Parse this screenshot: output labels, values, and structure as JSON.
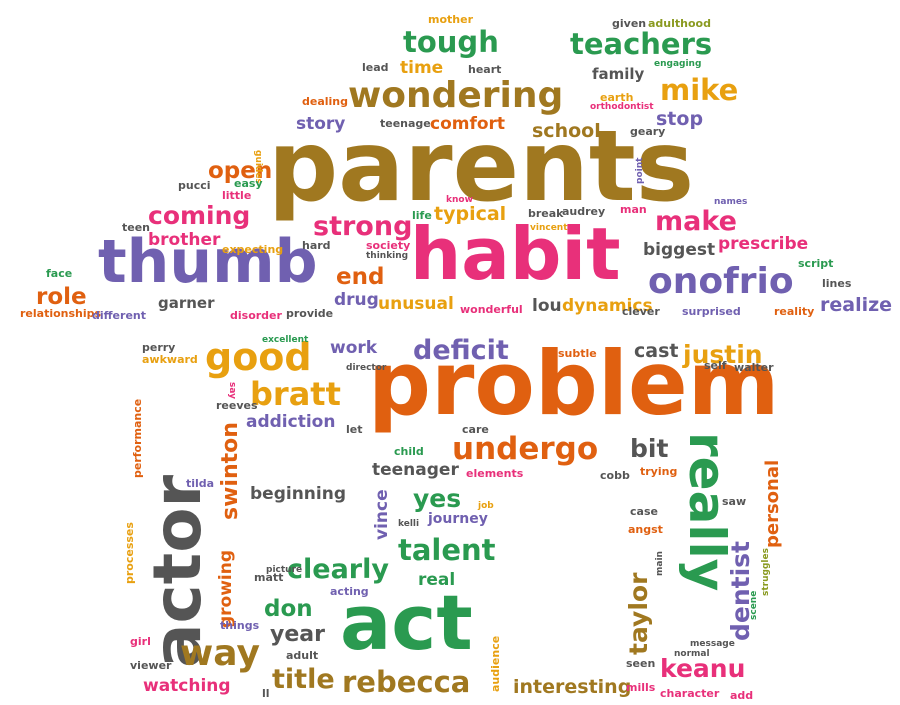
{
  "palette": {
    "brown": "#a07820",
    "orange": "#e06010",
    "pink": "#e8307a",
    "purple": "#7060b0",
    "green": "#2a9a50",
    "gold": "#e8a010",
    "gray": "#555555",
    "olive": "#8a9a20"
  },
  "words": [
    {
      "text": "parents",
      "color": "brown"
    },
    {
      "text": "problem",
      "color": "orange"
    },
    {
      "text": "habit",
      "color": "pink"
    },
    {
      "text": "thumb",
      "color": "purple"
    },
    {
      "text": "actor",
      "color": "gray"
    },
    {
      "text": "act",
      "color": "green"
    },
    {
      "text": "really",
      "color": "green"
    },
    {
      "text": "wondering",
      "color": "brown"
    },
    {
      "text": "onofrio",
      "color": "purple"
    },
    {
      "text": "good",
      "color": "gold"
    },
    {
      "text": "teachers",
      "color": "green"
    },
    {
      "text": "tough",
      "color": "green"
    },
    {
      "text": "mike",
      "color": "gold"
    },
    {
      "text": "coming",
      "color": "pink"
    },
    {
      "text": "strong",
      "color": "pink"
    },
    {
      "text": "make",
      "color": "pink"
    },
    {
      "text": "end",
      "color": "orange"
    },
    {
      "text": "role",
      "color": "orange"
    },
    {
      "text": "bratt",
      "color": "gold"
    },
    {
      "text": "undergo",
      "color": "orange"
    },
    {
      "text": "deficit",
      "color": "purple"
    },
    {
      "text": "justin",
      "color": "gold"
    },
    {
      "text": "swinton",
      "color": "orange"
    },
    {
      "text": "talent",
      "color": "green"
    },
    {
      "text": "clearly",
      "color": "green"
    },
    {
      "text": "way",
      "color": "brown"
    },
    {
      "text": "rebecca",
      "color": "brown"
    },
    {
      "text": "keanu",
      "color": "pink"
    },
    {
      "text": "taylor",
      "color": "brown"
    },
    {
      "text": "dentist",
      "color": "purple"
    },
    {
      "text": "personal",
      "color": "orange"
    },
    {
      "text": "title",
      "color": "brown"
    },
    {
      "text": "yes",
      "color": "green"
    },
    {
      "text": "bit",
      "color": "gray"
    },
    {
      "text": "open",
      "color": "orange"
    },
    {
      "text": "comfort",
      "color": "orange"
    },
    {
      "text": "story",
      "color": "purple"
    },
    {
      "text": "school",
      "color": "brown"
    },
    {
      "text": "stop",
      "color": "purple"
    },
    {
      "text": "time",
      "color": "gold"
    },
    {
      "text": "family",
      "color": "gray"
    },
    {
      "text": "typical",
      "color": "gold"
    },
    {
      "text": "brother",
      "color": "pink"
    },
    {
      "text": "biggest",
      "color": "gray"
    },
    {
      "text": "prescribe",
      "color": "pink"
    },
    {
      "text": "realize",
      "color": "purple"
    },
    {
      "text": "drug",
      "color": "purple"
    },
    {
      "text": "unusual",
      "color": "gold"
    },
    {
      "text": "lou",
      "color": "gray"
    },
    {
      "text": "dynamics",
      "color": "gold"
    },
    {
      "text": "garner",
      "color": "gray"
    },
    {
      "text": "addiction",
      "color": "purple"
    },
    {
      "text": "work",
      "color": "purple"
    },
    {
      "text": "cast",
      "color": "gray"
    },
    {
      "text": "teenager",
      "color": "gray"
    },
    {
      "text": "beginning",
      "color": "gray"
    },
    {
      "text": "vince",
      "color": "purple"
    },
    {
      "text": "journey",
      "color": "purple"
    },
    {
      "text": "real",
      "color": "green"
    },
    {
      "text": "don",
      "color": "green"
    },
    {
      "text": "year",
      "color": "gray"
    },
    {
      "text": "watching",
      "color": "pink"
    },
    {
      "text": "growing",
      "color": "orange"
    },
    {
      "text": "interesting",
      "color": "brown"
    },
    {
      "text": "mother",
      "color": "gold"
    },
    {
      "text": "given",
      "color": "gray"
    },
    {
      "text": "adulthood",
      "color": "olive"
    },
    {
      "text": "engaging",
      "color": "green"
    },
    {
      "text": "lead",
      "color": "gray"
    },
    {
      "text": "heart",
      "color": "gray"
    },
    {
      "text": "earth",
      "color": "gold"
    },
    {
      "text": "orthodontist",
      "color": "pink"
    },
    {
      "text": "dealing",
      "color": "orange"
    },
    {
      "text": "teenage",
      "color": "gray"
    },
    {
      "text": "guides",
      "color": "gold"
    },
    {
      "text": "geary",
      "color": "gray"
    },
    {
      "text": "pucci",
      "color": "gray"
    },
    {
      "text": "easy",
      "color": "green"
    },
    {
      "text": "little",
      "color": "pink"
    },
    {
      "text": "point",
      "color": "purple"
    },
    {
      "text": "teen",
      "color": "gray"
    },
    {
      "text": "expecting",
      "color": "gold"
    },
    {
      "text": "hard",
      "color": "gray"
    },
    {
      "text": "society",
      "color": "pink"
    },
    {
      "text": "thinking",
      "color": "gray"
    },
    {
      "text": "life",
      "color": "green"
    },
    {
      "text": "know",
      "color": "pink"
    },
    {
      "text": "vincent",
      "color": "gold"
    },
    {
      "text": "break",
      "color": "gray"
    },
    {
      "text": "audrey",
      "color": "gray"
    },
    {
      "text": "man",
      "color": "pink"
    },
    {
      "text": "names",
      "color": "purple"
    },
    {
      "text": "script",
      "color": "green"
    },
    {
      "text": "face",
      "color": "green"
    },
    {
      "text": "lines",
      "color": "gray"
    },
    {
      "text": "relationships",
      "color": "orange"
    },
    {
      "text": "different",
      "color": "purple"
    },
    {
      "text": "disorder",
      "color": "pink"
    },
    {
      "text": "provide",
      "color": "gray"
    },
    {
      "text": "wonderful",
      "color": "pink"
    },
    {
      "text": "clever",
      "color": "gray"
    },
    {
      "text": "surprised",
      "color": "purple"
    },
    {
      "text": "reality",
      "color": "orange"
    },
    {
      "text": "perry",
      "color": "gray"
    },
    {
      "text": "excellent",
      "color": "green"
    },
    {
      "text": "awkward",
      "color": "gold"
    },
    {
      "text": "director",
      "color": "gray"
    },
    {
      "text": "subtle",
      "color": "orange"
    },
    {
      "text": "self",
      "color": "gray"
    },
    {
      "text": "walter",
      "color": "gray"
    },
    {
      "text": "say",
      "color": "pink"
    },
    {
      "text": "reeves",
      "color": "gray"
    },
    {
      "text": "let",
      "color": "gray"
    },
    {
      "text": "care",
      "color": "gray"
    },
    {
      "text": "child",
      "color": "green"
    },
    {
      "text": "elements",
      "color": "pink"
    },
    {
      "text": "cobb",
      "color": "gray"
    },
    {
      "text": "trying",
      "color": "orange"
    },
    {
      "text": "performance",
      "color": "orange"
    },
    {
      "text": "tilda",
      "color": "purple"
    },
    {
      "text": "job",
      "color": "gold"
    },
    {
      "text": "kelli",
      "color": "gray"
    },
    {
      "text": "saw",
      "color": "gray"
    },
    {
      "text": "case",
      "color": "gray"
    },
    {
      "text": "angst",
      "color": "orange"
    },
    {
      "text": "processes",
      "color": "gold"
    },
    {
      "text": "matt",
      "color": "gray"
    },
    {
      "text": "picture",
      "color": "gray"
    },
    {
      "text": "acting",
      "color": "purple"
    },
    {
      "text": "things",
      "color": "purple"
    },
    {
      "text": "main",
      "color": "gray"
    },
    {
      "text": "scene",
      "color": "green"
    },
    {
      "text": "struggles",
      "color": "olive"
    },
    {
      "text": "girl",
      "color": "pink"
    },
    {
      "text": "viewer",
      "color": "gray"
    },
    {
      "text": "adult",
      "color": "gray"
    },
    {
      "text": "normal",
      "color": "gray"
    },
    {
      "text": "message",
      "color": "gray"
    },
    {
      "text": "audience",
      "color": "gold"
    },
    {
      "text": "seen",
      "color": "gray"
    },
    {
      "text": "mills",
      "color": "pink"
    },
    {
      "text": "character",
      "color": "pink"
    },
    {
      "text": "add",
      "color": "pink"
    },
    {
      "text": "ll",
      "color": "gray"
    }
  ]
}
